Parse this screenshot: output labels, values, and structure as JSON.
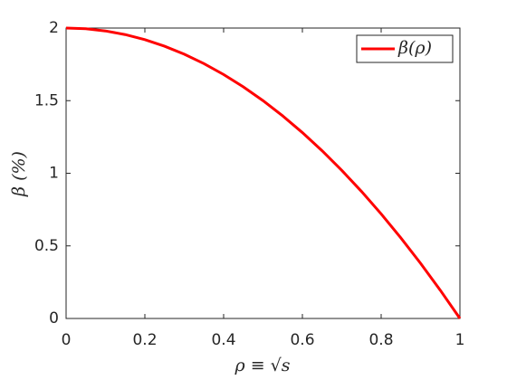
{
  "chart_data": {
    "type": "line",
    "xlabel": "ρ ≡ √s",
    "ylabel": "β (%)",
    "x": [
      0,
      0.05,
      0.1,
      0.15,
      0.2,
      0.25,
      0.3,
      0.35,
      0.4,
      0.45,
      0.5,
      0.55,
      0.6,
      0.65,
      0.7,
      0.75,
      0.8,
      0.85,
      0.9,
      0.95,
      1
    ],
    "series": [
      {
        "name": "β(ρ)",
        "color": "#ff0000",
        "values": [
          2,
          1.995,
          1.98,
          1.955,
          1.92,
          1.875,
          1.82,
          1.755,
          1.68,
          1.595,
          1.5,
          1.395,
          1.28,
          1.155,
          1.02,
          0.875,
          0.72,
          0.555,
          0.38,
          0.195,
          0
        ]
      }
    ],
    "xlim": [
      0,
      1
    ],
    "xticks": [
      0,
      0.2,
      0.4,
      0.6,
      0.8,
      1
    ],
    "ylim": [
      0,
      2
    ],
    "yticks": [
      0,
      0.5,
      1,
      1.5,
      2
    ],
    "grid": false,
    "legend": "northeast"
  }
}
